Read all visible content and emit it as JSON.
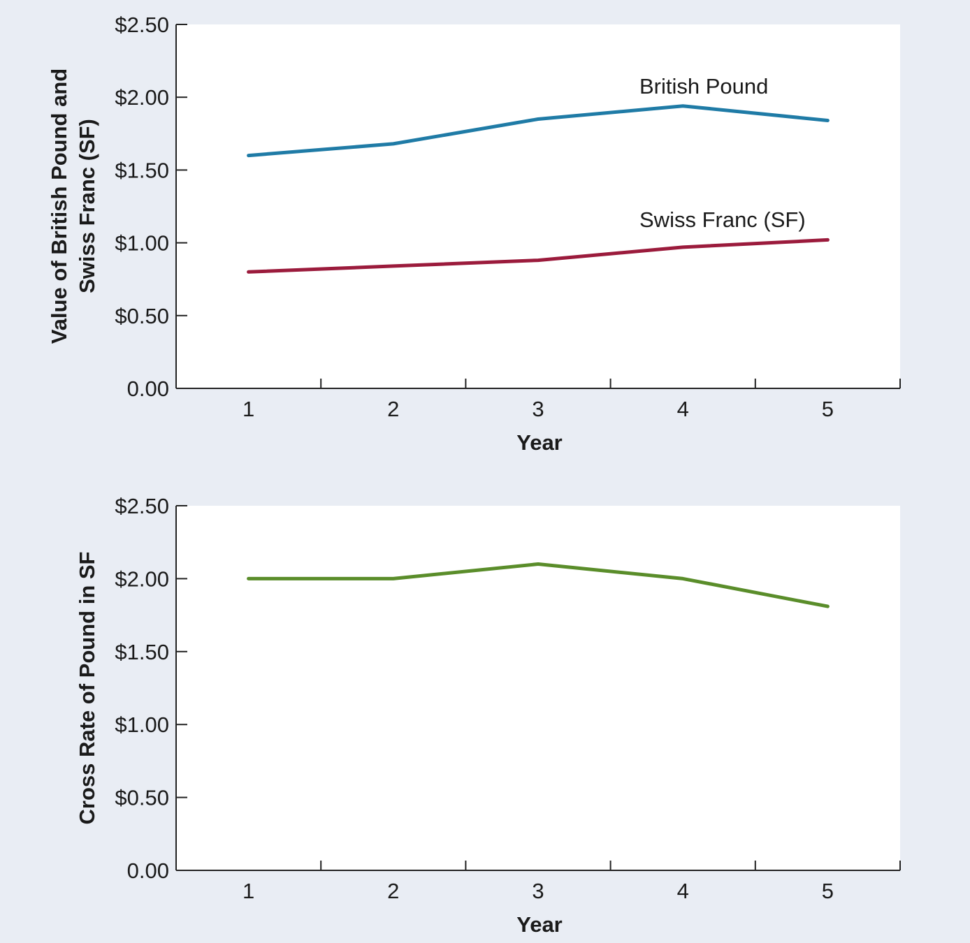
{
  "chart_data": [
    {
      "type": "line",
      "title": "",
      "xlabel": "Year",
      "ylabel_lines": [
        "Value of British Pound and",
        "Swiss Franc (SF)"
      ],
      "x": [
        1,
        2,
        3,
        4,
        5
      ],
      "x_tick_labels": [
        "1",
        "2",
        "3",
        "4",
        "5"
      ],
      "y_tick_labels": [
        "0.00",
        "$0.50",
        "$1.00",
        "$1.50",
        "$2.00",
        "$2.50"
      ],
      "ylim": [
        0,
        2.5
      ],
      "xlim": [
        0.5,
        5.5
      ],
      "grid": false,
      "series": [
        {
          "name": "British Pound",
          "values": [
            1.6,
            1.68,
            1.85,
            1.94,
            1.84
          ],
          "color": "#1f7ba6"
        },
        {
          "name": "Swiss Franc (SF)",
          "values": [
            0.8,
            0.84,
            0.88,
            0.97,
            1.02
          ],
          "color": "#9b1b3c"
        }
      ]
    },
    {
      "type": "line",
      "title": "",
      "xlabel": "Year",
      "ylabel_lines": [
        "Cross Rate of Pound in SF"
      ],
      "x": [
        1,
        2,
        3,
        4,
        5
      ],
      "x_tick_labels": [
        "1",
        "2",
        "3",
        "4",
        "5"
      ],
      "y_tick_labels": [
        "0.00",
        "$0.50",
        "$1.00",
        "$1.50",
        "$2.00",
        "$2.50"
      ],
      "ylim": [
        0,
        2.5
      ],
      "xlim": [
        0.5,
        5.5
      ],
      "grid": false,
      "series": [
        {
          "values": [
            2.0,
            2.0,
            2.1,
            2.0,
            1.81
          ],
          "color": "#5a8d2a"
        }
      ]
    }
  ]
}
